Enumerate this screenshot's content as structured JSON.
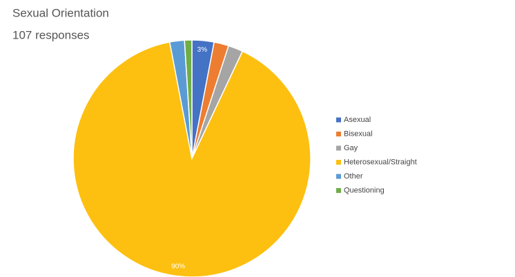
{
  "chart_data": {
    "type": "pie",
    "title": "Sexual Orientation",
    "subtitle": "107 responses",
    "categories": [
      "Asexual",
      "Bisexual",
      "Gay",
      "Heterosexual/Straight",
      "Other",
      "Questioning"
    ],
    "values": [
      3,
      2,
      2,
      90,
      2,
      1
    ],
    "value_labels": [
      "3%",
      null,
      null,
      "90%",
      null,
      null
    ],
    "colors": [
      "#4472c4",
      "#ed7d31",
      "#a5a5a5",
      "#fdc010",
      "#5b9bd5",
      "#70ad47"
    ],
    "legend": "right"
  }
}
